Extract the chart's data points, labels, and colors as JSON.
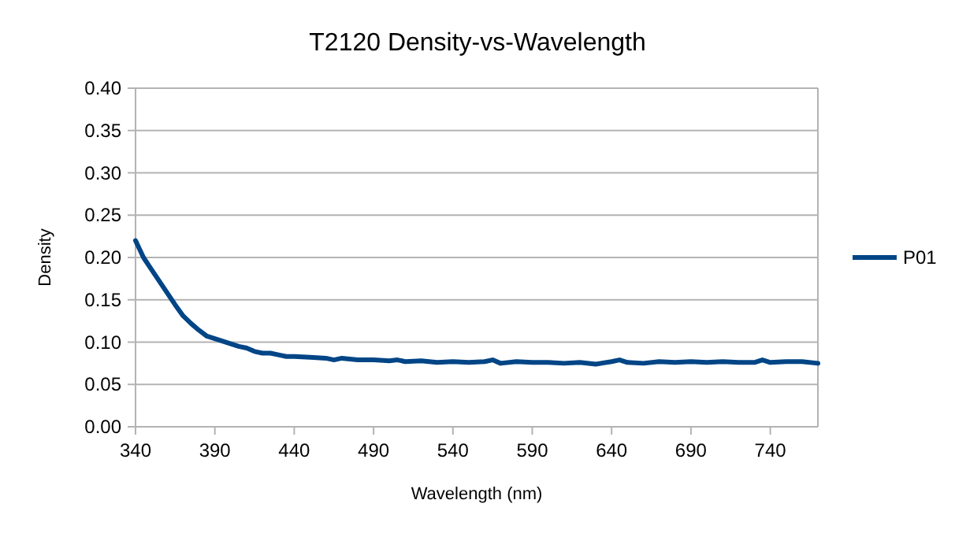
{
  "chart_data": {
    "type": "line",
    "title": "T2120 Density-vs-Wavelength",
    "xlabel": "Wavelength (nm)",
    "ylabel": "Density",
    "x": [
      340,
      345,
      350,
      355,
      360,
      365,
      370,
      375,
      380,
      385,
      390,
      395,
      400,
      405,
      410,
      415,
      420,
      425,
      430,
      435,
      440,
      450,
      460,
      465,
      470,
      480,
      490,
      500,
      505,
      510,
      520,
      530,
      540,
      550,
      560,
      565,
      570,
      580,
      590,
      600,
      610,
      620,
      630,
      640,
      645,
      650,
      660,
      670,
      680,
      690,
      700,
      710,
      720,
      730,
      735,
      740,
      750,
      760,
      770
    ],
    "series": [
      {
        "name": "P01",
        "color": "#004586",
        "values": [
          0.22,
          0.2,
          0.186,
          0.172,
          0.158,
          0.144,
          0.131,
          0.122,
          0.114,
          0.107,
          0.104,
          0.101,
          0.098,
          0.095,
          0.093,
          0.089,
          0.087,
          0.087,
          0.085,
          0.083,
          0.083,
          0.082,
          0.081,
          0.079,
          0.081,
          0.079,
          0.079,
          0.078,
          0.079,
          0.077,
          0.078,
          0.076,
          0.077,
          0.076,
          0.077,
          0.079,
          0.075,
          0.077,
          0.076,
          0.076,
          0.075,
          0.076,
          0.074,
          0.077,
          0.079,
          0.076,
          0.075,
          0.077,
          0.076,
          0.077,
          0.076,
          0.077,
          0.076,
          0.076,
          0.079,
          0.076,
          0.077,
          0.077,
          0.075
        ]
      }
    ],
    "xlim": [
      340,
      770
    ],
    "xticks": [
      340,
      390,
      440,
      490,
      540,
      590,
      640,
      690,
      740
    ],
    "ylim": [
      0,
      0.4
    ],
    "yticks": [
      {
        "value": 0,
        "label": "0.00"
      },
      {
        "value": 0.05,
        "label": "0.05"
      },
      {
        "value": 0.1,
        "label": "0.10"
      },
      {
        "value": 0.15,
        "label": "0.15"
      },
      {
        "value": 0.2,
        "label": "0.20"
      },
      {
        "value": 0.25,
        "label": "0.25"
      },
      {
        "value": 0.3,
        "label": "0.30"
      },
      {
        "value": 0.35,
        "label": "0.35"
      },
      {
        "value": 0.4,
        "label": "0.40"
      }
    ],
    "grid": "y",
    "legend": "right",
    "marker": "none",
    "line_style": "solid"
  }
}
